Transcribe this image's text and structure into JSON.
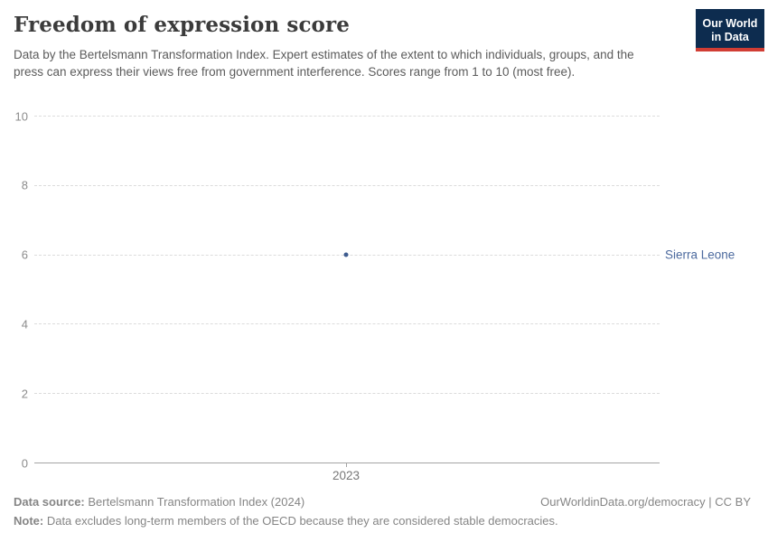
{
  "header": {
    "title": "Freedom of expression score",
    "subtitle": "Data by the Bertelsmann Transformation Index. Expert estimates of the extent to which individuals, groups, and the press can express their views free from government interference. Scores range from 1 to 10 (most free).",
    "logo": {
      "line1": "Our World",
      "line2": "in Data",
      "bg_color": "#0d2c4f",
      "accent_color": "#d13d34"
    }
  },
  "chart_data": {
    "type": "scatter",
    "title": "Freedom of expression score",
    "x": [
      2023
    ],
    "series": [
      {
        "name": "Sierra Leone",
        "values": [
          6
        ],
        "color": "#3e5c8f",
        "label_color": "#4c6a9e"
      }
    ],
    "xlabel": "",
    "ylabel": "",
    "ylim": [
      0,
      10
    ],
    "yticks": [
      0,
      2,
      4,
      6,
      8,
      10
    ],
    "xticks": [
      "2023"
    ],
    "grid": "horizontal-dashed",
    "legend_position": "right-of-point"
  },
  "footer": {
    "data_source_label": "Data source:",
    "data_source_text": " Bertelsmann Transformation Index (2024)",
    "link_text": "OurWorldinData.org/democracy | CC BY",
    "note_label": "Note:",
    "note_text": " Data excludes long-term members of the OECD because they are considered stable democracies."
  }
}
